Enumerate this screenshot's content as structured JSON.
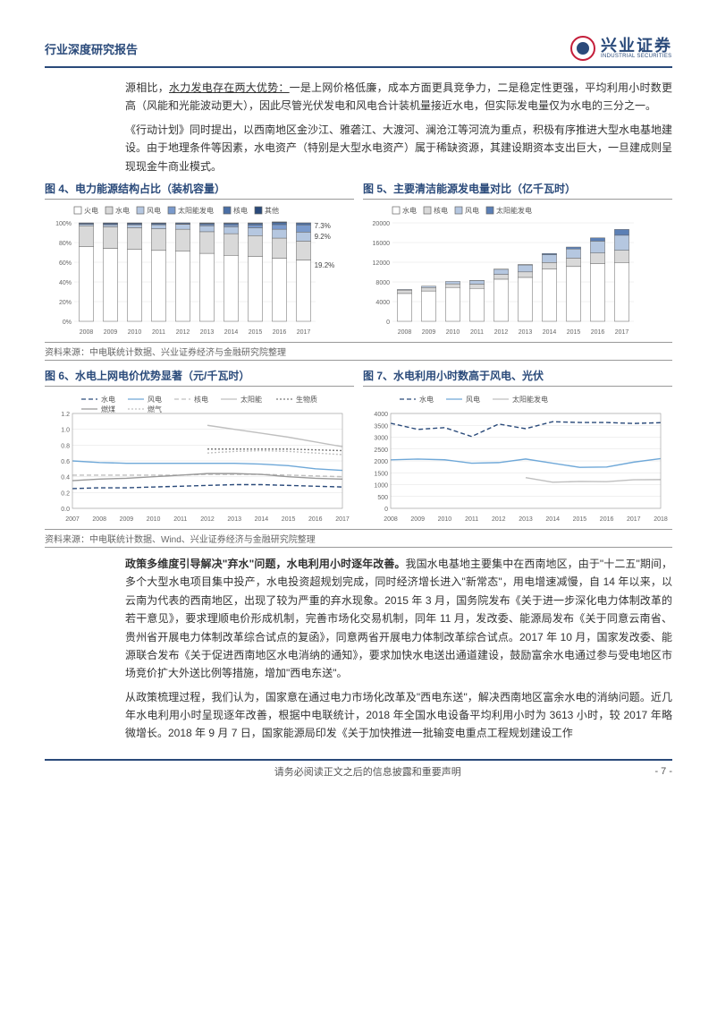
{
  "header": {
    "title": "行业深度研究报告",
    "logo_cn": "兴业证券",
    "logo_en": "INDUSTRIAL SECURITIES"
  },
  "para1": "源相比，",
  "para1_u": "水力发电存在两大优势：",
  "para1_rest": "一是上网价格低廉，成本方面更具竞争力，二是稳定性更强，平均利用小时数更高（风能和光能波动更大），因此尽管光伏发电和风电合计装机量接近水电，但实际发电量仅为水电的三分之一。",
  "para2": "《行动计划》同时提出，以西南地区金沙江、雅砻江、大渡河、澜沧江等河流为重点，积极有序推进大型水电基地建设。由于地理条件等因素，水电资产（特别是大型水电资产）属于稀缺资源，其建设期资本支出巨大，一旦建成则呈现现金牛商业模式。",
  "chart4": {
    "title": "图 4、电力能源结构占比（装机容量）",
    "legend": [
      "火电",
      "水电",
      "风电",
      "太阳能发电",
      "核电",
      "其他"
    ],
    "legend_colors": [
      "#ffffff",
      "#d9d9d9",
      "#b5c7e0",
      "#7a9acc",
      "#4a6fa5",
      "#2a4a7a"
    ],
    "years": [
      "2008",
      "2009",
      "2010",
      "2011",
      "2012",
      "2013",
      "2014",
      "2015",
      "2016",
      "2017"
    ],
    "stacks": [
      [
        76,
        21,
        1.5,
        0.1,
        1.1,
        0.3
      ],
      [
        74,
        22,
        2,
        0.1,
        1.1,
        0.8
      ],
      [
        73,
        22,
        3,
        0.1,
        1.1,
        0.8
      ],
      [
        72,
        22,
        4,
        0.2,
        1.1,
        0.7
      ],
      [
        71.5,
        22,
        5,
        0.3,
        1.1,
        0.1
      ],
      [
        69,
        22,
        6,
        1.3,
        1.2,
        0.5
      ],
      [
        67,
        22,
        7,
        2,
        1.5,
        0.5
      ],
      [
        66,
        21,
        8,
        2.8,
        1.7,
        0.5
      ],
      [
        64,
        20.5,
        9,
        4.7,
        2.0,
        0.8
      ],
      [
        62.2,
        19.2,
        9.2,
        7.3,
        2.0,
        0.1
      ]
    ],
    "callouts": [
      "7.3%",
      "9.2%",
      "19.2%"
    ],
    "ylim": [
      0,
      100
    ],
    "ystep": 20,
    "bg": "#fff",
    "grid": "#e0e0e0"
  },
  "chart5": {
    "title": "图 5、主要清洁能源发电量对比（亿千瓦时）",
    "legend": [
      "水电",
      "核电",
      "风电",
      "太阳能发电"
    ],
    "legend_colors": [
      "#ffffff",
      "#d9d9d9",
      "#b5c7e0",
      "#5b7fb5"
    ],
    "years": [
      "2008",
      "2009",
      "2010",
      "2011",
      "2012",
      "2013",
      "2014",
      "2015",
      "2016",
      "2017"
    ],
    "stacks": [
      [
        5655,
        684,
        131,
        0
      ],
      [
        6156,
        701,
        276,
        0
      ],
      [
        6867,
        739,
        494,
        0
      ],
      [
        6681,
        872,
        741,
        6
      ],
      [
        8556,
        983,
        1030,
        36
      ],
      [
        8921,
        1116,
        1412,
        84
      ],
      [
        10601,
        1332,
        1598,
        235
      ],
      [
        11127,
        1708,
        1856,
        395
      ],
      [
        11748,
        2132,
        2409,
        665
      ],
      [
        11945,
        2481,
        3057,
        1182
      ]
    ],
    "ylim": [
      0,
      20000
    ],
    "ystep": 4000,
    "bg": "#fff",
    "grid": "#e0e0e0"
  },
  "source1": "资料来源：中电联统计数据、兴业证券经济与金融研究院整理",
  "chart6": {
    "title": "图 6、水电上网电价优势显著（元/千瓦时）",
    "legend": [
      "水电",
      "风电",
      "核电",
      "太阳能",
      "生物质",
      "燃煤",
      "燃气"
    ],
    "colors": [
      "#2a4a7a",
      "#6fa8d8",
      "#bfbfbf",
      "#bfbfbf",
      "#7a7a7a",
      "#999999",
      "#c0c0c0"
    ],
    "dashes": [
      "5,3",
      "0",
      "5,3",
      "0",
      "2,2",
      "0",
      "2,2"
    ],
    "years": [
      "2007",
      "2008",
      "2009",
      "2010",
      "2011",
      "2012",
      "2013",
      "2014",
      "2015",
      "2016",
      "2017"
    ],
    "series": {
      "水电": [
        0.25,
        0.26,
        0.26,
        0.27,
        0.28,
        0.29,
        0.3,
        0.3,
        0.29,
        0.28,
        0.27
      ],
      "风电": [
        0.6,
        0.58,
        0.57,
        0.57,
        0.57,
        0.57,
        0.57,
        0.56,
        0.54,
        0.5,
        0.48
      ],
      "核电": [
        0.42,
        0.42,
        0.42,
        0.42,
        0.42,
        0.43,
        0.43,
        0.43,
        0.42,
        0.41,
        0.4
      ],
      "太阳能": [
        null,
        null,
        null,
        null,
        null,
        1.05,
        1.0,
        0.95,
        0.9,
        0.84,
        0.78
      ],
      "生物质": [
        null,
        null,
        null,
        null,
        null,
        0.75,
        0.75,
        0.75,
        0.75,
        0.74,
        0.73
      ],
      "燃煤": [
        0.35,
        0.37,
        0.38,
        0.4,
        0.42,
        0.44,
        0.44,
        0.43,
        0.4,
        0.38,
        0.37
      ],
      "燃气": [
        null,
        null,
        null,
        null,
        null,
        0.7,
        0.72,
        0.73,
        0.72,
        0.7,
        0.68
      ]
    },
    "ylim": [
      0,
      1.2
    ],
    "ystep": 0.2,
    "bg": "#fff",
    "grid": "#e0e0e0"
  },
  "chart7": {
    "title": "图 7、水电利用小时数高于风电、光伏",
    "legend": [
      "水电",
      "风电",
      "太阳能发电"
    ],
    "colors": [
      "#2a4a7a",
      "#6fa8d8",
      "#bfbfbf"
    ],
    "dashes": [
      "5,3",
      "0",
      "0"
    ],
    "years": [
      "2008",
      "2009",
      "2010",
      "2011",
      "2012",
      "2013",
      "2014",
      "2015",
      "2016",
      "2017",
      "2018"
    ],
    "series": {
      "水电": [
        3589,
        3328,
        3404,
        3028,
        3555,
        3359,
        3653,
        3621,
        3619,
        3579,
        3613
      ],
      "风电": [
        2046,
        2077,
        2047,
        1903,
        1929,
        2080,
        1905,
        1728,
        1742,
        1948,
        2095
      ],
      "太阳能发电": [
        null,
        null,
        null,
        null,
        null,
        1295,
        1100,
        1133,
        1125,
        1204,
        1212
      ]
    },
    "ylim": [
      0,
      4000
    ],
    "ystep": 500,
    "bg": "#fff",
    "grid": "#e0e0e0"
  },
  "source2": "资料来源：中电联统计数据、Wind、兴业证券经济与金融研究院整理",
  "para3_b": "政策多维度引导解决\"弃水\"问题，水电利用小时逐年改善。",
  "para3": "我国水电基地主要集中在西南地区，由于\"十二五\"期间，多个大型水电项目集中投产，水电投资超规划完成，同时经济增长进入\"新常态\"，用电增速减慢，自 14 年以来，以云南为代表的西南地区，出现了较为严重的弃水现象。2015 年 3 月，国务院发布《关于进一步深化电力体制改革的若干意见》，要求理顺电价形成机制，完善市场化交易机制，同年 11 月，发改委、能源局发布《关于同意云南省、贵州省开展电力体制改革综合试点的复函》，同意两省开展电力体制改革综合试点。2017 年 10 月，国家发改委、能源联合发布《关于促进西南地区水电消纳的通知》，要求加快水电送出通道建设，鼓励富余水电通过参与受电地区市场竞价扩大外送比例等措施，增加\"西电东送\"。",
  "para4": "从政策梳理过程，我们认为，国家意在通过电力市场化改革及\"西电东送\"，解决西南地区富余水电的消纳问题。近几年水电利用小时呈现逐年改善，根据中电联统计，2018 年全国水电设备平均利用小时为 3613 小时，较 2017 年略微增长。2018 年 9 月 7 日，国家能源局印发《关于加快推进一批输变电重点工程规划建设工作",
  "footer": {
    "text": "请务必阅读正文之后的信息披露和重要声明",
    "pagenum": "- 7 -"
  }
}
